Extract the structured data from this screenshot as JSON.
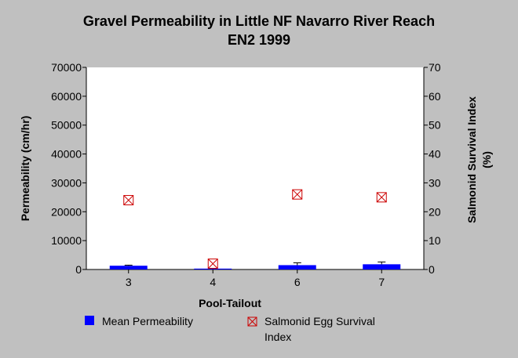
{
  "chart_data": {
    "type": "bar",
    "title": "Gravel Permeability in Little NF Navarro River Reach",
    "subtitle": "EN2 1999",
    "xlabel": "Pool-Tailout",
    "ylabel": "Permeability (cm/hr)",
    "y2label_line1": "Salmonid Survival Index",
    "y2label_line2": "(%)",
    "categories": [
      "3",
      "4",
      "6",
      "7"
    ],
    "ylim": [
      0,
      70000
    ],
    "y2lim": [
      0,
      70
    ],
    "yticks": [
      "0",
      "10000",
      "20000",
      "30000",
      "40000",
      "50000",
      "60000",
      "70000"
    ],
    "y2ticks": [
      "0",
      "10",
      "20",
      "30",
      "40",
      "50",
      "60",
      "70"
    ],
    "grid": false,
    "legend_position": "bottom",
    "series": [
      {
        "name": "Mean Permeability",
        "axis": "left",
        "kind": "bar",
        "color": "#0000ff",
        "values": [
          1300,
          300,
          1500,
          1800
        ],
        "error_high": [
          1500,
          400,
          2300,
          2600
        ]
      },
      {
        "name": "Salmonid Egg Survival Index",
        "name_line1": "Salmonid Egg Survival",
        "name_line2": "Index",
        "axis": "right",
        "kind": "marker",
        "marker": "crossed-square",
        "color": "#cc0000",
        "values": [
          24,
          2,
          26,
          25
        ]
      }
    ]
  }
}
